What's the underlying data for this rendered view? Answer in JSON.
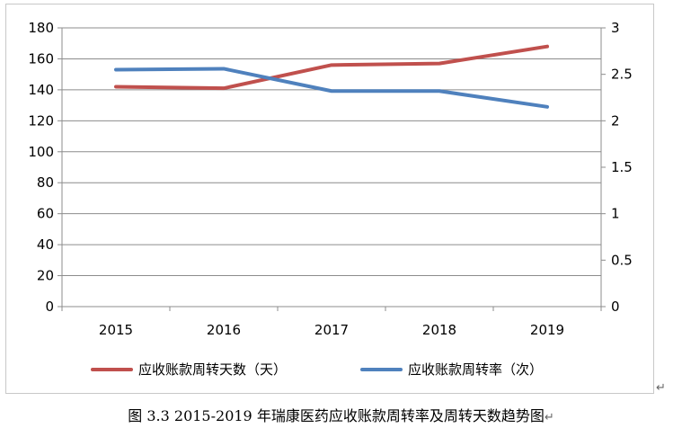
{
  "chart_data": {
    "type": "line",
    "categories": [
      "2015",
      "2016",
      "2017",
      "2018",
      "2019"
    ],
    "y_left": {
      "range": [
        0,
        180
      ],
      "ticks": [
        0,
        20,
        40,
        60,
        80,
        100,
        120,
        140,
        160,
        180
      ]
    },
    "y_right": {
      "range": [
        0,
        3
      ],
      "ticks": [
        "0",
        "0.5",
        "1",
        "1.5",
        "2",
        "2.5",
        "3"
      ]
    },
    "grid": true,
    "legend_position": "bottom",
    "series": [
      {
        "name": "应收账款周转天数（天）",
        "axis": "left",
        "color": "#c0504d",
        "values": [
          142,
          141,
          156,
          157,
          168
        ]
      },
      {
        "name": "应收账款周转率（次）",
        "axis": "right",
        "color": "#4f81bd",
        "values": [
          2.55,
          2.56,
          2.32,
          2.32,
          2.15
        ]
      }
    ]
  },
  "caption": "图 3.3 2015-2019 年瑞康医药应收账款周转率及周转天数趋势图",
  "marks": {
    "frame_end": "↵",
    "caption_end": "↵"
  }
}
